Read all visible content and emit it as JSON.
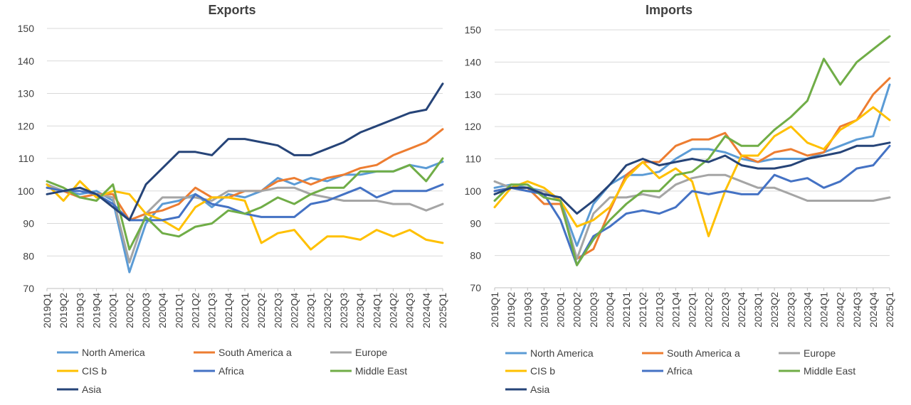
{
  "colors": {
    "north_america": "#5b9bd5",
    "south_america": "#ed7d31",
    "europe": "#a5a5a5",
    "cis": "#ffc000",
    "africa": "#4472c4",
    "middle_east": "#70ad47",
    "asia": "#264478"
  },
  "chart_data": [
    {
      "type": "line",
      "title": "Exports",
      "xlabel": "",
      "ylabel": "",
      "ylim": [
        70,
        150
      ],
      "yticks": [
        70,
        80,
        90,
        100,
        110,
        120,
        130,
        140,
        150
      ],
      "grid": true,
      "legend_position": "bottom",
      "x": [
        "2019Q1",
        "2019Q2",
        "2019Q3",
        "2019Q4",
        "2020Q1",
        "2020Q2",
        "2020Q3",
        "2020Q4",
        "2021Q1",
        "2021Q2",
        "2021Q3",
        "2021Q4",
        "2022Q1",
        "2022Q2",
        "2022Q3",
        "2022Q4",
        "2023Q1",
        "2023Q2",
        "2023Q3",
        "2023Q4",
        "2024Q1",
        "2024Q2",
        "2024Q3",
        "2024Q4",
        "2025Q1"
      ],
      "series": [
        {
          "key": "north_america",
          "name": "North America",
          "values": [
            102,
            100,
            99,
            100,
            97,
            75,
            90,
            96,
            97,
            99,
            95,
            99,
            98,
            100,
            104,
            102,
            104,
            103,
            105,
            105,
            106,
            106,
            108,
            107,
            109
          ]
        },
        {
          "key": "south_america",
          "name": "South America a",
          "values": [
            101,
            100,
            98,
            99,
            99,
            91,
            93,
            94,
            96,
            101,
            98,
            98,
            100,
            100,
            103,
            104,
            102,
            104,
            105,
            107,
            108,
            111,
            113,
            115,
            119
          ]
        },
        {
          "key": "europe",
          "name": "Europe",
          "values": [
            102,
            100,
            101,
            99,
            98,
            78,
            93,
            98,
            98,
            98,
            97,
            100,
            100,
            100,
            101,
            101,
            99,
            98,
            97,
            97,
            97,
            96,
            96,
            94,
            96
          ]
        },
        {
          "key": "cis",
          "name": "CIS b",
          "values": [
            102,
            97,
            103,
            98,
            100,
            99,
            93,
            91,
            88,
            95,
            98,
            98,
            97,
            84,
            87,
            88,
            82,
            86,
            86,
            85,
            88,
            86,
            88,
            85,
            84
          ]
        },
        {
          "key": "africa",
          "name": "Africa",
          "values": [
            101,
            100,
            100,
            99,
            96,
            91,
            91,
            91,
            92,
            99,
            96,
            95,
            93,
            92,
            92,
            92,
            96,
            97,
            99,
            101,
            98,
            100,
            100,
            100,
            102
          ]
        },
        {
          "key": "middle_east",
          "name": "Middle East",
          "values": [
            103,
            101,
            98,
            97,
            102,
            82,
            92,
            87,
            86,
            89,
            90,
            94,
            93,
            95,
            98,
            96,
            99,
            101,
            101,
            106,
            106,
            106,
            108,
            103,
            110
          ]
        },
        {
          "key": "asia",
          "name": "Asia",
          "values": [
            99,
            100,
            101,
            99,
            95,
            91,
            102,
            107,
            112,
            112,
            111,
            116,
            116,
            115,
            114,
            111,
            111,
            113,
            115,
            118,
            120,
            122,
            124,
            125,
            133
          ]
        }
      ]
    },
    {
      "type": "line",
      "title": "Imports",
      "xlabel": "",
      "ylabel": "",
      "ylim": [
        70,
        150
      ],
      "yticks": [
        70,
        80,
        90,
        100,
        110,
        120,
        130,
        140,
        150
      ],
      "grid": true,
      "legend_position": "bottom",
      "x": [
        "2019Q1",
        "2019Q2",
        "2019Q3",
        "2019Q4",
        "2020Q1",
        "2020Q2",
        "2020Q3",
        "2020Q4",
        "2021Q1",
        "2021Q2",
        "2021Q3",
        "2021Q4",
        "2022Q1",
        "2022Q2",
        "2022Q3",
        "2022Q4",
        "2023Q1",
        "2023Q2",
        "2023Q3",
        "2023Q4",
        "2024Q1",
        "2024Q2",
        "2024Q3",
        "2024Q4",
        "2025Q1"
      ],
      "series": [
        {
          "key": "north_america",
          "name": "North America",
          "values": [
            101,
            102,
            101,
            100,
            97,
            83,
            96,
            102,
            105,
            105,
            106,
            110,
            113,
            113,
            112,
            110,
            109,
            110,
            110,
            110,
            112,
            114,
            116,
            117,
            133
          ]
        },
        {
          "key": "south_america",
          "name": "South America a",
          "values": [
            100,
            101,
            101,
            96,
            96,
            79,
            82,
            94,
            105,
            109,
            109,
            114,
            116,
            116,
            118,
            111,
            109,
            112,
            113,
            111,
            112,
            120,
            122,
            130,
            135
          ]
        },
        {
          "key": "europe",
          "name": "Europe",
          "values": [
            103,
            101,
            100,
            100,
            97,
            79,
            93,
            98,
            98,
            99,
            98,
            102,
            104,
            105,
            105,
            103,
            101,
            101,
            99,
            97,
            97,
            97,
            97,
            97,
            98
          ]
        },
        {
          "key": "cis",
          "name": "CIS b",
          "values": [
            95,
            101,
            103,
            101,
            97,
            89,
            91,
            95,
            104,
            109,
            104,
            107,
            103,
            86,
            100,
            111,
            111,
            117,
            120,
            115,
            113,
            119,
            122,
            126,
            122
          ]
        },
        {
          "key": "africa",
          "name": "Africa",
          "values": [
            100,
            101,
            100,
            99,
            91,
            77,
            86,
            89,
            93,
            94,
            93,
            95,
            100,
            99,
            100,
            99,
            99,
            105,
            103,
            104,
            101,
            103,
            107,
            108,
            114
          ]
        },
        {
          "key": "middle_east",
          "name": "Middle East",
          "values": [
            97,
            102,
            102,
            98,
            97,
            77,
            85,
            91,
            96,
            100,
            100,
            105,
            106,
            110,
            117,
            114,
            114,
            119,
            123,
            128,
            141,
            133,
            140,
            144,
            148
          ]
        },
        {
          "key": "asia",
          "name": "Asia",
          "values": [
            99,
            101,
            101,
            99,
            98,
            93,
            97,
            102,
            108,
            110,
            108,
            109,
            110,
            109,
            111,
            108,
            107,
            107,
            108,
            110,
            111,
            112,
            114,
            114,
            115
          ]
        }
      ]
    }
  ]
}
